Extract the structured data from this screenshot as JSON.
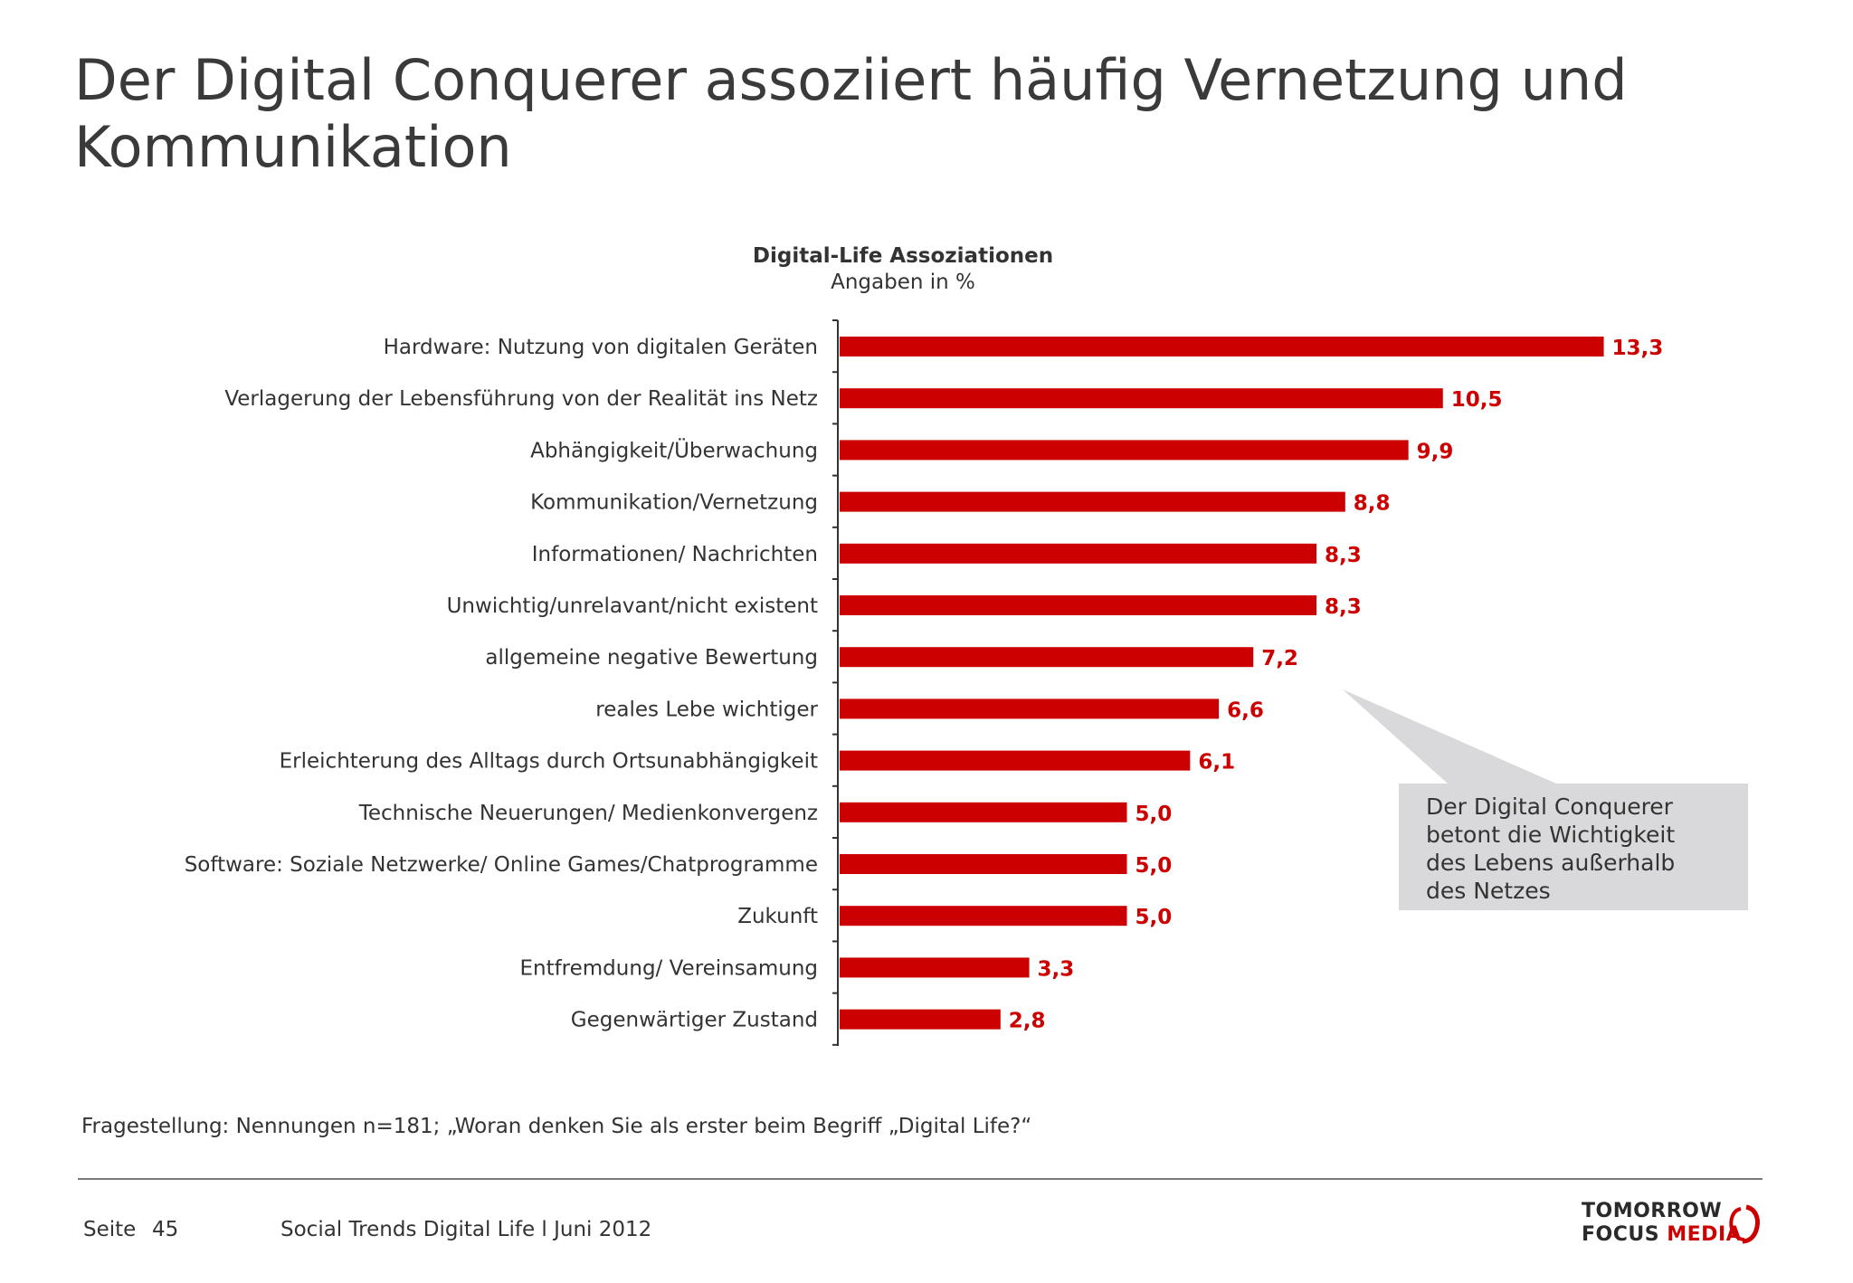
{
  "slide": {
    "title": "Der Digital Conquerer assoziiert häufig Vernetzung und Kommunikation"
  },
  "chart_data": {
    "type": "bar",
    "orientation": "horizontal",
    "title": "Digital-Life Assoziationen",
    "subtitle": "Angaben in %",
    "categories": [
      "Hardware: Nutzung von digitalen Geräten",
      "Verlagerung der Lebensführung von der Realität ins Netz",
      "Abhängigkeit/Überwachung",
      "Kommunikation/Vernetzung",
      "Informationen/ Nachrichten",
      "Unwichtig/unrelavant/nicht existent",
      "allgemeine negative Bewertung",
      "reales Lebe wichtiger",
      "Erleichterung des Alltags durch Ortsunabhängigkeit",
      "Technische Neuerungen/ Medienkonvergenz",
      "Software: Soziale Netzwerke/ Online Games/Chatprogramme",
      "Zukunft",
      "Entfremdung/ Vereinsamung",
      "Gegenwärtiger Zustand"
    ],
    "values": [
      13.3,
      10.5,
      9.9,
      8.8,
      8.3,
      8.3,
      7.2,
      6.6,
      6.1,
      5.0,
      5.0,
      5.0,
      3.3,
      2.8
    ],
    "value_labels": [
      "13,3",
      "10,5",
      "9,9",
      "8,8",
      "8,3",
      "8,3",
      "7,2",
      "6,6",
      "6,1",
      "5,0",
      "5,0",
      "5,0",
      "3,3",
      "2,8"
    ],
    "bar_color": "#cc0000",
    "value_label_color": "#cc0000",
    "grid": false,
    "legend": "none"
  },
  "callout": {
    "lines": [
      "Der Digital Conquerer",
      "betont die Wichtigkeit",
      "des Lebens außerhalb",
      "des Netzes"
    ],
    "background": "#d9d9db"
  },
  "question": "Fragestellung: Nennungen n=181; „Woran denken Sie als erster beim Begriff „Digital Life?“",
  "footer": {
    "page_label": "Seite",
    "page_number": "45",
    "note": "Social Trends Digital Life l Juni 2012",
    "logo_line1": "TOMORROW",
    "logo_line2_a": "FOCUS",
    "logo_line2_b": "MEDIA"
  }
}
